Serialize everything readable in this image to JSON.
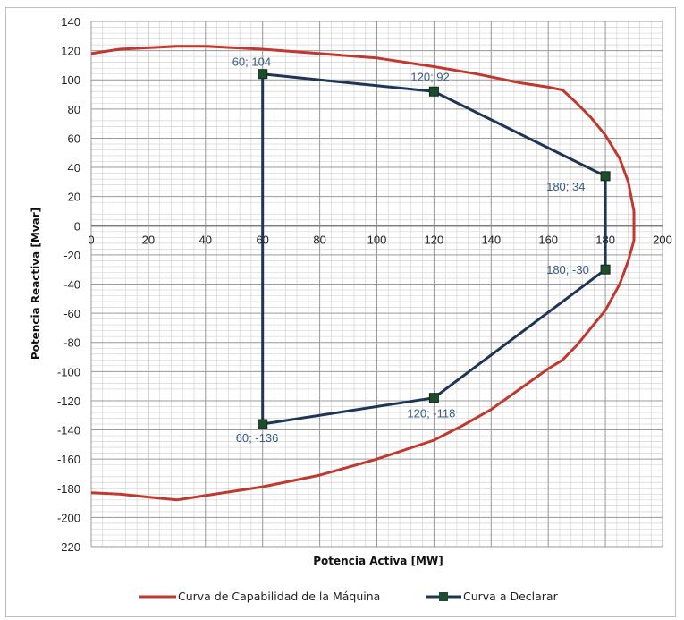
{
  "colors": {
    "capability": "#c0392f",
    "declared": "#1f3556",
    "marker": "#1e4d2b",
    "pointLabel": "#3a5a85",
    "gridMajor": "#9a9a9a",
    "gridMinor": "#d4d4d4",
    "zeroAxis": "#808080"
  },
  "chart_data": {
    "type": "line",
    "xlabel": "Potencia Activa [MW]",
    "ylabel": "Potencia Reactiva [Mvar]",
    "xlim": [
      0,
      200
    ],
    "ylim": [
      -220,
      140
    ],
    "xticks": [
      0,
      20,
      40,
      60,
      80,
      100,
      120,
      140,
      160,
      180,
      200
    ],
    "yticks": [
      140,
      120,
      100,
      80,
      60,
      40,
      20,
      0,
      -20,
      -40,
      -60,
      -80,
      -100,
      -120,
      -140,
      -160,
      -180,
      -200,
      -220
    ],
    "grid": true,
    "legend": "bottom",
    "series": [
      {
        "name": "Curva de Capabilidad de la Máquina",
        "color": "#c0392f",
        "x": [
          0,
          10,
          20,
          30,
          40,
          60,
          80,
          100,
          120,
          135,
          150,
          160,
          165,
          170,
          175,
          180,
          185,
          188,
          190,
          190,
          188,
          185,
          180,
          175,
          170,
          165,
          160,
          150,
          140,
          130,
          120,
          100,
          80,
          60,
          40,
          30,
          20,
          10,
          0
        ],
        "y": [
          118,
          121,
          122,
          123,
          123,
          121,
          118,
          115,
          109,
          104,
          98,
          95,
          93,
          84,
          74,
          62,
          46,
          30,
          10,
          -10,
          -24,
          -40,
          -58,
          -70,
          -82,
          -92,
          -98,
          -112,
          -126,
          -137,
          -147,
          -160,
          -171,
          -179,
          -185,
          -188,
          -186,
          -184,
          -183
        ],
        "markers": false
      },
      {
        "name": "Curva a Declarar",
        "color": "#1f3556",
        "x": [
          60,
          120,
          180,
          180,
          120,
          60,
          60
        ],
        "y": [
          104,
          92,
          34,
          -30,
          -118,
          -136,
          104
        ],
        "markers": true
      }
    ],
    "point_labels": [
      {
        "x": 60,
        "y": 104,
        "text": "60; 104"
      },
      {
        "x": 120,
        "y": 92,
        "text": "120; 92"
      },
      {
        "x": 180,
        "y": 34,
        "text": "180; 34"
      },
      {
        "x": 180,
        "y": -30,
        "text": "180; -30"
      },
      {
        "x": 120,
        "y": -118,
        "text": "120; -118"
      },
      {
        "x": 60,
        "y": -136,
        "text": "60; -136"
      }
    ]
  }
}
